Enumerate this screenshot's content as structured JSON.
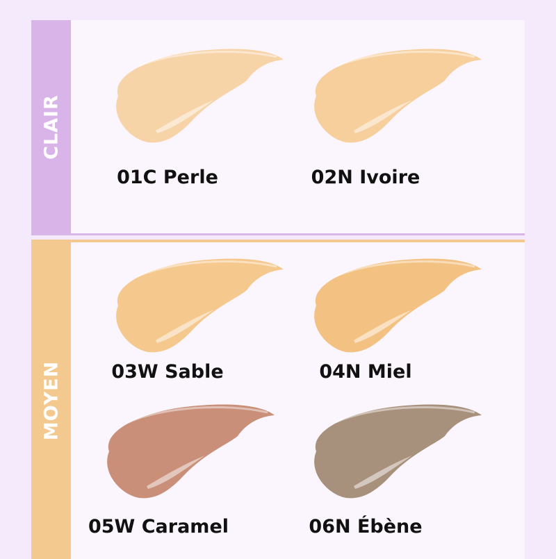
{
  "groups": [
    {
      "name": "CLAIR",
      "color": "#d9b4e8"
    },
    {
      "name": "MOYEN",
      "color": "#f3c98f"
    }
  ],
  "shades": [
    {
      "label": "01C Perle",
      "color": "#f7d3a8",
      "group": "CLAIR"
    },
    {
      "label": "02N Ivoire",
      "color": "#f6cf9d",
      "group": "CLAIR"
    },
    {
      "label": "03W Sable",
      "color": "#f5c98e",
      "group": "MOYEN"
    },
    {
      "label": "04N Miel",
      "color": "#f3c283",
      "group": "MOYEN"
    },
    {
      "label": "05W Caramel",
      "color": "#c98f79",
      "group": "MOYEN"
    },
    {
      "label": "06N Ébène",
      "color": "#a8917c",
      "group": "MOYEN"
    }
  ]
}
